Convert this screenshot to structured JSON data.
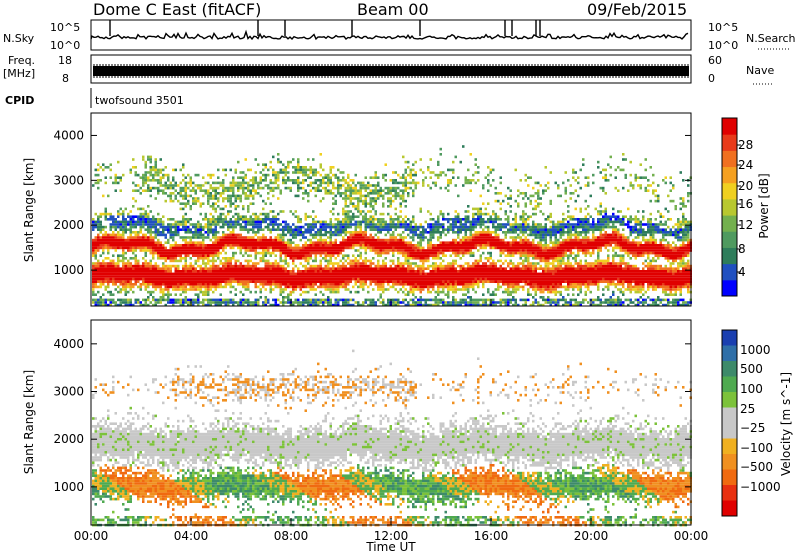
{
  "header": {
    "station": "Dome C East (fitACF)",
    "beam": "Beam 00",
    "date": "09/Feb/2015"
  },
  "strips": {
    "nsky_label": "N.Sky",
    "nsky_top": "10^5",
    "nsky_bottom": "10^0",
    "nsearch_label": "N.Search",
    "nsearch_top": "10^5",
    "nsearch_bottom": "10^0",
    "freq_label": "Freq.",
    "freq_unit": "[MHz]",
    "freq_top": "18",
    "freq_bottom": "8",
    "nave_label": "Nave",
    "nave_top": "60",
    "nave_bottom": "0",
    "cpid_label": "CPID",
    "cpid_value": "twofsound 3501"
  },
  "chart_data": [
    {
      "type": "heatmap",
      "name": "Power",
      "ylabel": "Slant Range [km]",
      "xlabel": "",
      "yticks": [
        1000,
        2000,
        3000,
        4000
      ],
      "ylim": [
        200,
        4500
      ],
      "xlim_hours": [
        0,
        24
      ],
      "colorbar": {
        "label": "Power [dB]",
        "ticks": [
          "4",
          "8",
          "12",
          "16",
          "20",
          "24",
          "28"
        ],
        "colors": [
          "#0000ff",
          "#2050c0",
          "#2e7d5b",
          "#4f9a5f",
          "#73b04e",
          "#b8c830",
          "#f0d020",
          "#f5a020",
          "#f07020",
          "#e83a1a",
          "#e00000"
        ]
      }
    },
    {
      "type": "heatmap",
      "name": "Velocity",
      "ylabel": "Slant Range [km]",
      "xlabel": "Time UT",
      "yticks": [
        1000,
        2000,
        3000,
        4000
      ],
      "ylim": [
        200,
        4500
      ],
      "xlim_hours": [
        0,
        24
      ],
      "xticks": [
        "00:00",
        "04:00",
        "08:00",
        "12:00",
        "16:00",
        "20:00",
        "00:00"
      ],
      "colorbar": {
        "label": "Velocity [m s^-1]",
        "ticks": [
          "1000",
          "500",
          "100",
          "25",
          "−25",
          "−100",
          "−500",
          "−1000"
        ],
        "colors": [
          "#1a3fb0",
          "#2f6fa8",
          "#3d8a6a",
          "#4faa50",
          "#7cc23a",
          "#c8c8c8",
          "#c8c8c8",
          "#f0b020",
          "#f09020",
          "#f06a10",
          "#e83010",
          "#e00000"
        ]
      }
    }
  ]
}
